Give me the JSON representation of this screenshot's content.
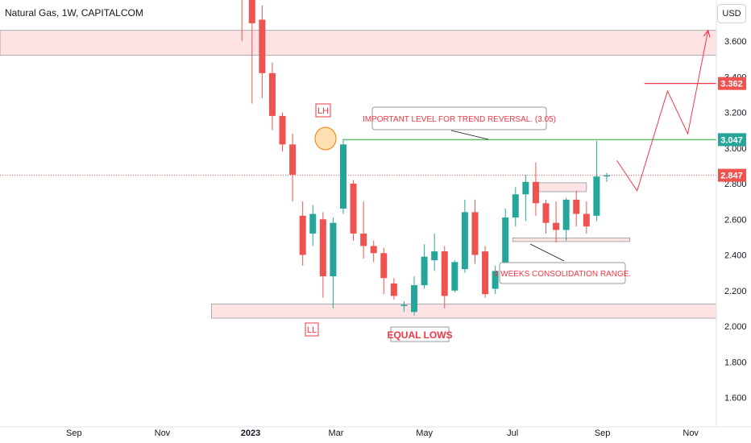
{
  "header": {
    "title": "Natural Gas, 1W, CAPITALCOM",
    "currency_button": "USD"
  },
  "colors": {
    "up": "#26a69a",
    "down": "#ef5350",
    "annotation": "#f23645",
    "zone_fill": "#fcdada",
    "level_green": "#4caf50",
    "axis_text": "#131722"
  },
  "chart_data": {
    "type": "candlestick",
    "title": "Natural Gas, 1W, CAPITALCOM",
    "y_axis": {
      "ticks": [
        "3.600",
        "3.400",
        "3.200",
        "3.000",
        "2.800",
        "2.600",
        "2.400",
        "2.200",
        "2.000",
        "1.800",
        "1.600"
      ],
      "tick_values": [
        3.6,
        3.4,
        3.2,
        3.0,
        2.8,
        2.6,
        2.4,
        2.2,
        2.0,
        1.8,
        1.6
      ],
      "range": [
        1.5,
        3.8
      ]
    },
    "x_axis": {
      "ticks": [
        "Jul",
        "Sep",
        "Nov",
        "2023",
        "Mar",
        "May",
        "Jul",
        "Sep",
        "Nov"
      ]
    },
    "price_tags": [
      {
        "label": "3.362",
        "value": 3.362,
        "style": "filled-red"
      },
      {
        "label": "3.047",
        "value": 3.047,
        "style": "filled-green"
      },
      {
        "label": "2.847",
        "value": 2.847,
        "style": "filled-red"
      }
    ],
    "candles": [
      {
        "date": "2022-12-26",
        "open": 5.0,
        "high": 5.05,
        "low": 3.6,
        "close": 3.85
      },
      {
        "date": "2023-01-02",
        "open": 3.85,
        "high": 4.0,
        "low": 3.25,
        "close": 3.7
      },
      {
        "date": "2023-01-09",
        "open": 3.72,
        "high": 3.8,
        "low": 3.28,
        "close": 3.42
      },
      {
        "date": "2023-01-16",
        "open": 3.42,
        "high": 3.48,
        "low": 3.1,
        "close": 3.18
      },
      {
        "date": "2023-01-23",
        "open": 3.18,
        "high": 3.2,
        "low": 2.98,
        "close": 3.02
      },
      {
        "date": "2023-01-30",
        "open": 3.02,
        "high": 3.08,
        "low": 2.7,
        "close": 2.85
      },
      {
        "date": "2023-02-06",
        "open": 2.62,
        "high": 2.7,
        "low": 2.34,
        "close": 2.4
      },
      {
        "date": "2023-02-13",
        "open": 2.52,
        "high": 2.68,
        "low": 2.45,
        "close": 2.63
      },
      {
        "date": "2023-02-20",
        "open": 2.6,
        "high": 2.64,
        "low": 2.16,
        "close": 2.28
      },
      {
        "date": "2023-02-27",
        "open": 2.28,
        "high": 2.61,
        "low": 2.1,
        "close": 2.58
      },
      {
        "date": "2023-03-06",
        "open": 2.66,
        "high": 3.05,
        "low": 2.63,
        "close": 3.02
      },
      {
        "date": "2023-03-13",
        "open": 2.8,
        "high": 2.82,
        "low": 2.48,
        "close": 2.52
      },
      {
        "date": "2023-03-20",
        "open": 2.52,
        "high": 2.7,
        "low": 2.38,
        "close": 2.45
      },
      {
        "date": "2023-03-27",
        "open": 2.45,
        "high": 2.48,
        "low": 2.36,
        "close": 2.41
      },
      {
        "date": "2023-04-03",
        "open": 2.41,
        "high": 2.44,
        "low": 2.18,
        "close": 2.27
      },
      {
        "date": "2023-04-10",
        "open": 2.24,
        "high": 2.27,
        "low": 2.15,
        "close": 2.17
      },
      {
        "date": "2023-04-17",
        "open": 2.12,
        "high": 2.14,
        "low": 2.08,
        "close": 2.12
      },
      {
        "date": "2023-04-24",
        "open": 2.08,
        "high": 2.28,
        "low": 2.06,
        "close": 2.23
      },
      {
        "date": "2023-05-01",
        "open": 2.23,
        "high": 2.46,
        "low": 2.21,
        "close": 2.39
      },
      {
        "date": "2023-05-08",
        "open": 2.37,
        "high": 2.52,
        "low": 2.31,
        "close": 2.42
      },
      {
        "date": "2023-05-15",
        "open": 2.42,
        "high": 2.45,
        "low": 2.1,
        "close": 2.17
      },
      {
        "date": "2023-05-22",
        "open": 2.2,
        "high": 2.37,
        "low": 2.19,
        "close": 2.36
      },
      {
        "date": "2023-05-29",
        "open": 2.32,
        "high": 2.71,
        "low": 2.3,
        "close": 2.64
      },
      {
        "date": "2023-06-05",
        "open": 2.64,
        "high": 2.71,
        "low": 2.35,
        "close": 2.4
      },
      {
        "date": "2023-06-12",
        "open": 2.42,
        "high": 2.45,
        "low": 2.16,
        "close": 2.18
      },
      {
        "date": "2023-06-19",
        "open": 2.21,
        "high": 2.34,
        "low": 2.18,
        "close": 2.31
      },
      {
        "date": "2023-06-26",
        "open": 2.3,
        "high": 2.66,
        "low": 2.28,
        "close": 2.61
      },
      {
        "date": "2023-07-03",
        "open": 2.61,
        "high": 2.78,
        "low": 2.56,
        "close": 2.74
      },
      {
        "date": "2023-07-10",
        "open": 2.74,
        "high": 2.85,
        "low": 2.59,
        "close": 2.81
      },
      {
        "date": "2023-07-17",
        "open": 2.81,
        "high": 2.92,
        "low": 2.62,
        "close": 2.69
      },
      {
        "date": "2023-07-24",
        "open": 2.69,
        "high": 2.71,
        "low": 2.52,
        "close": 2.58
      },
      {
        "date": "2023-07-31",
        "open": 2.58,
        "high": 2.7,
        "low": 2.47,
        "close": 2.54
      },
      {
        "date": "2023-08-07",
        "open": 2.54,
        "high": 2.72,
        "low": 2.48,
        "close": 2.71
      },
      {
        "date": "2023-08-14",
        "open": 2.71,
        "high": 2.76,
        "low": 2.56,
        "close": 2.63
      },
      {
        "date": "2023-08-21",
        "open": 2.63,
        "high": 2.7,
        "low": 2.52,
        "close": 2.56
      },
      {
        "date": "2023-08-28",
        "open": 2.62,
        "high": 3.04,
        "low": 2.59,
        "close": 2.84
      },
      {
        "date": "2023-09-04",
        "open": 2.847,
        "high": 2.86,
        "low": 2.81,
        "close": 2.847
      }
    ],
    "zones": [
      {
        "name": "resistance-zone",
        "from": "2022-06-27",
        "to": "2023-12-31",
        "y0": 3.52,
        "y1": 3.66
      },
      {
        "name": "equal-lows-zone",
        "from": "2022-12-05",
        "to": "2023-12-31",
        "y0": 2.045,
        "y1": 2.125
      },
      {
        "name": "consolidation-zone",
        "from": "2023-07-17",
        "to": "2023-08-21",
        "y0": 2.755,
        "y1": 2.805
      },
      {
        "name": "consolidation-range-bottom",
        "from": "2023-07-01",
        "to": "2023-09-20",
        "y0": 2.475,
        "y1": 2.495
      }
    ],
    "levels": [
      {
        "name": "trend-reversal-level",
        "value": 3.047,
        "from": "2023-03-06",
        "to": "2023-12-31"
      },
      {
        "name": "target-level",
        "value": 3.362,
        "from": "2023-09-30",
        "to": "2023-12-31"
      },
      {
        "name": "current-price",
        "value": 2.847,
        "from": "2022-06-27",
        "to": "2023-12-31"
      }
    ],
    "projection": [
      {
        "date": "2023-09-11",
        "value": 2.93
      },
      {
        "date": "2023-09-25",
        "value": 2.76
      },
      {
        "date": "2023-10-16",
        "value": 3.32
      },
      {
        "date": "2023-10-30",
        "value": 3.08
      },
      {
        "date": "2023-11-13",
        "value": 3.66
      }
    ],
    "annotations": [
      {
        "name": "lh-label",
        "text": "LH"
      },
      {
        "name": "ll-label",
        "text": "LL"
      },
      {
        "name": "equal-lows-label",
        "text": "EQUAL LOWS"
      },
      {
        "name": "trend-reversal-callout",
        "text": "IMPORTANT LEVEL FOR TREND REVERSAL. (3.05)"
      },
      {
        "name": "consolidation-callout",
        "text": "4 WEEKS CONSOLIDATION RANGE."
      }
    ]
  }
}
